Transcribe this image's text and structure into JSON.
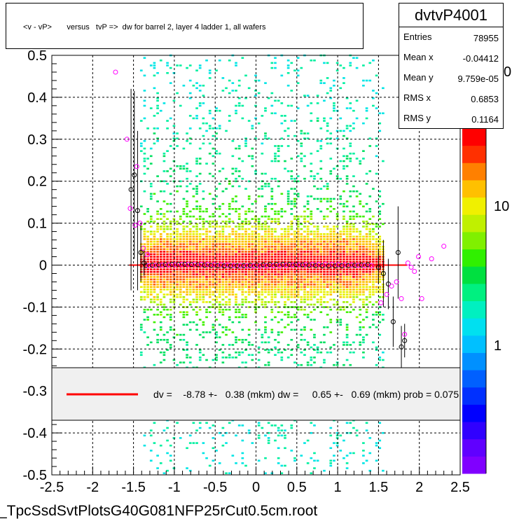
{
  "title": "<v - vP>       versus   tvP =>  dw for barrel 2, layer 4 ladder 1, all wafers",
  "stats": {
    "name": "dvtvP4001",
    "rows": [
      {
        "key": "Entries",
        "value": "78955"
      },
      {
        "key": "Mean x",
        "value": "-0.04412"
      },
      {
        "key": "Mean y",
        "value": "9.759e-05"
      },
      {
        "key": "RMS x",
        "value": "0.6853"
      },
      {
        "key": "RMS y",
        "value": "0.1164"
      }
    ]
  },
  "fit_legend": "dv =    -8.78 +-   0.38 (mkm) dw =     0.65 +-   0.69 (mkm) prob = 0.075",
  "footer": "_TpcSsdSvtPlotsG40G081NFP25rCut0.5cm.root",
  "colors": {
    "fit_line": "#ff0000",
    "profile_black": "#000000",
    "profile_magenta": "#ff00ff"
  },
  "chart_data": {
    "type": "heatmap",
    "xlim": [
      -2.5,
      2.5
    ],
    "ylim": [
      -0.5,
      0.5
    ],
    "x_ticks": [
      "-2.5",
      "-2",
      "-1.5",
      "-1",
      "-0.5",
      "0",
      "0.5",
      "1",
      "1.5",
      "2",
      "2.5"
    ],
    "y_ticks": [
      "0.5",
      "0.4",
      "0.3",
      "0.2",
      "0.1",
      "0",
      "-0.1",
      "-0.2",
      "-0.3",
      "-0.4",
      "-0.5"
    ],
    "grid": true,
    "color_scale": "log",
    "colorbar_labels": [
      "10",
      "1"
    ],
    "colorbar_partial_label": "0",
    "fit_line": {
      "x": [
        -1.55,
        1.85
      ],
      "y": [
        0.0,
        0.0
      ]
    },
    "profile_black": [
      {
        "x": -1.53,
        "y": 0.18,
        "err": 0.24
      },
      {
        "x": -1.49,
        "y": 0.215,
        "err": 0.2
      },
      {
        "x": -1.45,
        "y": 0.13,
        "err": 0.19
      },
      {
        "x": -1.41,
        "y": 0.03,
        "err": 0.07
      },
      {
        "x": -1.37,
        "y": 0.005,
        "err": 0.03
      },
      {
        "x": 1.5,
        "y": -0.005,
        "err": 0.04
      },
      {
        "x": 1.56,
        "y": -0.02,
        "err": 0.08
      },
      {
        "x": 1.62,
        "y": -0.045,
        "err": 0.06
      },
      {
        "x": 1.68,
        "y": -0.135,
        "err": 0.06
      },
      {
        "x": 1.74,
        "y": 0.03,
        "err": 0.11
      },
      {
        "x": 1.78,
        "y": -0.195,
        "err": 0.05
      },
      {
        "x": 1.82,
        "y": -0.18,
        "err": 0.04
      }
    ],
    "profile_magenta": [
      {
        "x": -1.72,
        "y": 0.46
      },
      {
        "x": -1.58,
        "y": 0.3
      },
      {
        "x": -1.54,
        "y": 0.135
      },
      {
        "x": -1.48,
        "y": 0.095
      },
      {
        "x": -1.46,
        "y": 0.235
      },
      {
        "x": -1.42,
        "y": 0.1
      },
      {
        "x": -1.38,
        "y": 0.04
      },
      {
        "x": -1.33,
        "y": 0.025
      },
      {
        "x": 1.53,
        "y": -0.09
      },
      {
        "x": 1.6,
        "y": -0.07
      },
      {
        "x": 1.66,
        "y": -0.05
      },
      {
        "x": 1.72,
        "y": -0.04
      },
      {
        "x": 1.78,
        "y": -0.08
      },
      {
        "x": 1.82,
        "y": -0.165
      },
      {
        "x": 1.86,
        "y": 0.005
      },
      {
        "x": 1.9,
        "y": -0.005
      },
      {
        "x": 1.94,
        "y": -0.015
      },
      {
        "x": 1.99,
        "y": 0.02
      },
      {
        "x": 2.03,
        "y": -0.08
      },
      {
        "x": 2.15,
        "y": 0.015
      },
      {
        "x": 2.3,
        "y": 0.045
      }
    ]
  }
}
